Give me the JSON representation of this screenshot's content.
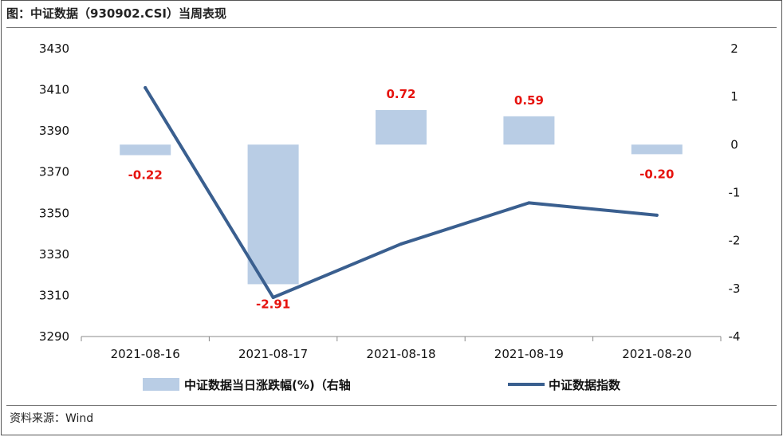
{
  "header": {
    "title": "图：中证数据（930902.CSI）当周表现"
  },
  "footer": {
    "source": "资料来源：Wind"
  },
  "chart_data": {
    "type": "bar",
    "categories": [
      "2021-08-16",
      "2021-08-17",
      "2021-08-18",
      "2021-08-19",
      "2021-08-20"
    ],
    "series": [
      {
        "name": "中证数据当日涨跌幅(%)（右轴",
        "type": "bar",
        "axis": "right",
        "color": "#b9cde5",
        "values": [
          -0.22,
          -2.91,
          0.72,
          0.59,
          -0.2
        ],
        "labels": [
          "-0.22",
          "-2.91",
          "0.72",
          "0.59",
          "-0.20"
        ]
      },
      {
        "name": "中证数据指数",
        "type": "line",
        "axis": "left",
        "color": "#3a5f8f",
        "values": [
          3411,
          3309,
          3335,
          3355,
          3349
        ]
      }
    ],
    "y_left": {
      "ylim": [
        3290,
        3430
      ],
      "ticks": [
        "3430",
        "3410",
        "3390",
        "3370",
        "3350",
        "3330",
        "3310",
        "3290"
      ]
    },
    "y_right": {
      "ylim": [
        -4,
        2
      ],
      "ticks": [
        "2",
        "1",
        "0",
        "-1",
        "-2",
        "-3",
        "-4"
      ]
    },
    "data_label_color": "#e6130e",
    "legend_position": "bottom",
    "grid": false
  }
}
